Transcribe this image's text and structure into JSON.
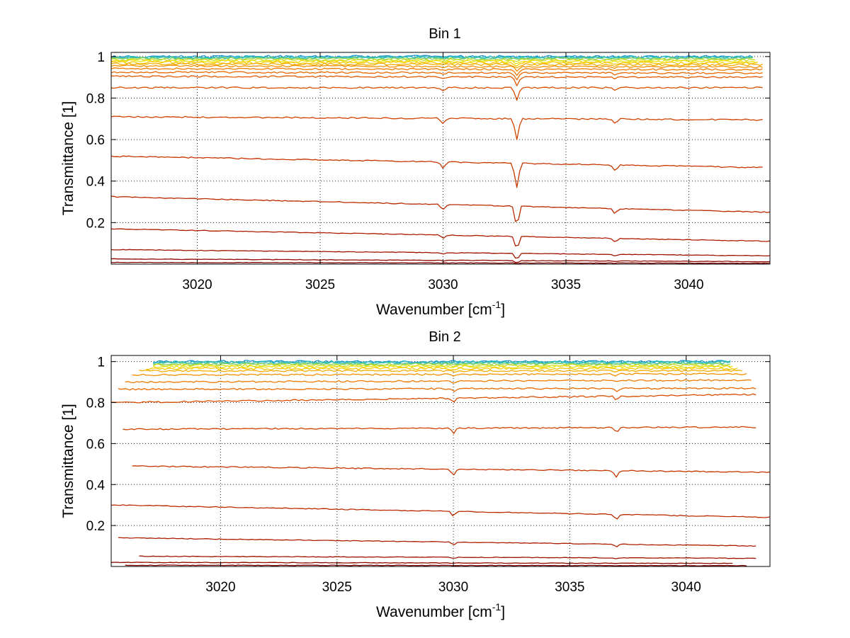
{
  "chart_data": [
    {
      "type": "line",
      "title": "Bin 1",
      "xlabel": {
        "text": "Wavenumber [cm",
        "sup": "-1",
        "tail": "]"
      },
      "ylabel": "Transmittance [1]",
      "xlim": [
        3016.5,
        3043.3
      ],
      "ylim": [
        0.0,
        1.02
      ],
      "xticks": [
        3020,
        3025,
        3030,
        3035,
        3040
      ],
      "yticks": [
        0.2,
        0.4,
        0.6,
        0.8,
        1
      ],
      "ytick_labels": [
        "0.2",
        "0.4",
        "0.6",
        "0.8",
        "1"
      ],
      "grid": true,
      "dips": [
        3030.0,
        3033.0,
        3037.0
      ],
      "series": [
        {
          "x": [
            3016.5,
            3042.6
          ],
          "y": [
            1.0,
            1.0
          ],
          "color": "#1e96d2"
        },
        {
          "x": [
            3016.5,
            3042.6
          ],
          "y": [
            0.997,
            0.997
          ],
          "color": "#1fb8c4"
        },
        {
          "x": [
            3016.5,
            3042.6
          ],
          "y": [
            0.994,
            0.994
          ],
          "color": "#3dc3a0"
        },
        {
          "x": [
            3016.5,
            3042.6
          ],
          "y": [
            0.99,
            0.989
          ],
          "color": "#8ad05a"
        },
        {
          "x": [
            3016.5,
            3042.7
          ],
          "y": [
            0.985,
            0.983
          ],
          "color": "#c8dc20"
        },
        {
          "x": [
            3016.5,
            3042.7
          ],
          "y": [
            0.978,
            0.976
          ],
          "color": "#f0e000"
        },
        {
          "x": [
            3016.5,
            3042.8
          ],
          "y": [
            0.972,
            0.969
          ],
          "color": "#f5c800"
        },
        {
          "x": [
            3016.5,
            3043.0
          ],
          "y": [
            0.965,
            0.96
          ],
          "color": "#f5ac00"
        },
        {
          "x": [
            3016.5,
            3043.0
          ],
          "y": [
            0.955,
            0.95
          ],
          "color": "#f29000"
        },
        {
          "x": [
            3016.5,
            3043.0
          ],
          "y": [
            0.942,
            0.937
          ],
          "color": "#ee7a00"
        },
        {
          "x": [
            3016.5,
            3043.0
          ],
          "y": [
            0.925,
            0.92
          ],
          "color": "#e86800"
        },
        {
          "x": [
            3016.5,
            3043.0
          ],
          "y": [
            0.905,
            0.9
          ],
          "color": "#e15a00"
        },
        {
          "x": [
            3016.5,
            3043.0
          ],
          "y": [
            0.85,
            0.85
          ],
          "color": "#d84d00"
        },
        {
          "x": [
            3016.5,
            3043.0
          ],
          "y": [
            0.71,
            0.695
          ],
          "color": "#cf4200"
        },
        {
          "x": [
            3016.5,
            3043.0
          ],
          "y": [
            0.52,
            0.465
          ],
          "color": "#c53600"
        },
        {
          "x": [
            3016.5,
            3043.3
          ],
          "y": [
            0.325,
            0.25
          ],
          "color": "#ba2a00"
        },
        {
          "x": [
            3016.5,
            3043.3
          ],
          "y": [
            0.17,
            0.11
          ],
          "color": "#ad1e00"
        },
        {
          "x": [
            3016.5,
            3043.3
          ],
          "y": [
            0.07,
            0.04
          ],
          "color": "#9e1400"
        },
        {
          "x": [
            3016.5,
            3043.3
          ],
          "y": [
            0.025,
            0.012
          ],
          "color": "#900a00"
        },
        {
          "x": [
            3016.5,
            3043.3
          ],
          "y": [
            0.008,
            0.004
          ],
          "color": "#800000"
        }
      ]
    },
    {
      "type": "line",
      "title": "Bin 2",
      "xlabel": {
        "text": "Wavenumber [cm",
        "sup": "-1",
        "tail": "]"
      },
      "ylabel": "Transmittance [1]",
      "xlim": [
        3015.3,
        3043.6
      ],
      "ylim": [
        0.0,
        1.03
      ],
      "xticks": [
        3020,
        3025,
        3030,
        3035,
        3040
      ],
      "yticks": [
        0.2,
        0.4,
        0.6,
        0.8,
        1
      ],
      "ytick_labels": [
        "0.2",
        "0.4",
        "0.6",
        "0.8",
        "1"
      ],
      "grid": true,
      "dips": [
        3030.0,
        3037.0
      ],
      "series": [
        {
          "x": [
            3017.1,
            3041.9
          ],
          "y": [
            1.0,
            1.0
          ],
          "color": "#1e96d2"
        },
        {
          "x": [
            3017.1,
            3041.9
          ],
          "y": [
            0.997,
            0.997
          ],
          "color": "#1fb8c4"
        },
        {
          "x": [
            3017.1,
            3041.9
          ],
          "y": [
            0.993,
            0.993
          ],
          "color": "#3dc3a0"
        },
        {
          "x": [
            3017.1,
            3041.9
          ],
          "y": [
            0.988,
            0.988
          ],
          "color": "#8ad05a"
        },
        {
          "x": [
            3017.1,
            3041.9
          ],
          "y": [
            0.982,
            0.982
          ],
          "color": "#c8dc20"
        },
        {
          "x": [
            3017.1,
            3042.0
          ],
          "y": [
            0.975,
            0.975
          ],
          "color": "#f0e000"
        },
        {
          "x": [
            3016.8,
            3042.2
          ],
          "y": [
            0.966,
            0.966
          ],
          "color": "#f5c800"
        },
        {
          "x": [
            3016.5,
            3042.4
          ],
          "y": [
            0.955,
            0.955
          ],
          "color": "#f5ac00"
        },
        {
          "x": [
            3016.2,
            3042.6
          ],
          "y": [
            0.935,
            0.94
          ],
          "color": "#f29000"
        },
        {
          "x": [
            3015.9,
            3042.8
          ],
          "y": [
            0.9,
            0.91
          ],
          "color": "#ee7a00"
        },
        {
          "x": [
            3015.6,
            3043.0
          ],
          "y": [
            0.865,
            0.87
          ],
          "color": "#e86800"
        },
        {
          "x": [
            3015.3,
            3043.0
          ],
          "y": [
            0.8,
            0.84
          ],
          "color": "#d84d00"
        },
        {
          "x": [
            3015.8,
            3043.0
          ],
          "y": [
            0.67,
            0.68
          ],
          "color": "#cf4200"
        },
        {
          "x": [
            3016.2,
            3043.6
          ],
          "y": [
            0.49,
            0.46
          ],
          "color": "#c53600"
        },
        {
          "x": [
            3015.3,
            3043.6
          ],
          "y": [
            0.3,
            0.24
          ],
          "color": "#ba2a00"
        },
        {
          "x": [
            3015.6,
            3043.0
          ],
          "y": [
            0.14,
            0.1
          ],
          "color": "#ad1e00"
        },
        {
          "x": [
            3016.5,
            3043.0
          ],
          "y": [
            0.05,
            0.04
          ],
          "color": "#9e1400"
        },
        {
          "x": [
            3015.3,
            3042.0
          ],
          "y": [
            0.02,
            0.015
          ],
          "color": "#900a00"
        },
        {
          "x": [
            3015.9,
            3042.6
          ],
          "y": [
            0.006,
            0.004
          ],
          "color": "#800000"
        }
      ]
    }
  ]
}
